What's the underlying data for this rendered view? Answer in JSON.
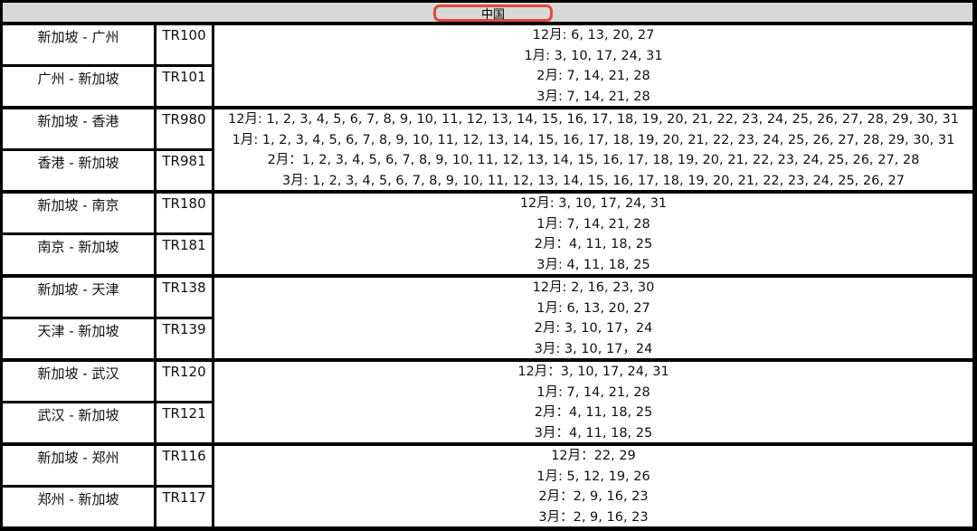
{
  "header": {
    "title": "中国",
    "highlight_color": "#e0493a"
  },
  "groups": [
    {
      "flights": [
        {
          "route": "新加坡 - 广州",
          "code": "TR100"
        },
        {
          "route": "广州 - 新加坡",
          "code": "TR101"
        }
      ],
      "dates": [
        "12月: 6, 13, 20, 27",
        "1月: 3, 10, 17, 24, 31",
        "2月: 7, 14, 21, 28",
        "3月: 7, 14, 21, 28"
      ]
    },
    {
      "flights": [
        {
          "route": "新加坡 - 香港",
          "code": "TR980"
        },
        {
          "route": "香港 - 新加坡",
          "code": "TR981"
        }
      ],
      "dates": [
        "12月: 1, 2, 3, 4, 5, 6, 7, 8, 9, 10, 11, 12, 13, 14, 15, 16, 17, 18, 19, 20, 21, 22, 23, 24, 25, 26, 27, 28, 29, 30, 31",
        "1月: 1, 2, 3, 4, 5, 6, 7, 8, 9, 10, 11, 12, 13, 14, 15, 16, 17, 18, 19, 20, 21, 22, 23, 24, 25, 26, 27, 28, 29, 30, 31",
        "2月：1, 2, 3, 4, 5, 6, 7, 8, 9, 10, 11, 12, 13, 14, 15, 16, 17, 18, 19, 20, 21, 22, 23, 24, 25, 26, 27, 28",
        "3月: 1, 2, 3, 4, 5, 6, 7, 8, 9, 10, 11, 12, 13, 14, 15, 16, 17, 18, 19, 20, 21, 22, 23, 24, 25, 26, 27"
      ]
    },
    {
      "flights": [
        {
          "route": "新加坡 - 南京",
          "code": "TR180"
        },
        {
          "route": "南京 - 新加坡",
          "code": "TR181"
        }
      ],
      "dates": [
        "12月: 3, 10, 17, 24, 31",
        "1月: 7, 14, 21, 28",
        "2月：4, 11, 18, 25",
        "3月: 4, 11, 18, 25"
      ]
    },
    {
      "flights": [
        {
          "route": "新加坡 - 天津",
          "code": "TR138"
        },
        {
          "route": "天津 - 新加坡",
          "code": "TR139"
        }
      ],
      "dates": [
        "12月: 2, 16, 23, 30",
        "1月: 6, 13, 20, 27",
        "2月: 3, 10, 17，24",
        "3月: 3, 10, 17，24"
      ]
    },
    {
      "flights": [
        {
          "route": "新加坡 - 武汉",
          "code": "TR120"
        },
        {
          "route": "武汉 - 新加坡",
          "code": "TR121"
        }
      ],
      "dates": [
        "12月：3, 10, 17, 24, 31",
        "1月: 7, 14, 21, 28",
        "2月：4, 11, 18, 25",
        "3月：4, 11, 18, 25"
      ]
    },
    {
      "flights": [
        {
          "route": "新加坡 - 郑州",
          "code": "TR116"
        },
        {
          "route": "郑州 - 新加坡",
          "code": "TR117"
        }
      ],
      "dates": [
        "12月：22, 29",
        "1月: 5, 12, 19, 26",
        "2月：2, 9, 16, 23",
        "3月：2, 9, 16, 23"
      ]
    }
  ]
}
